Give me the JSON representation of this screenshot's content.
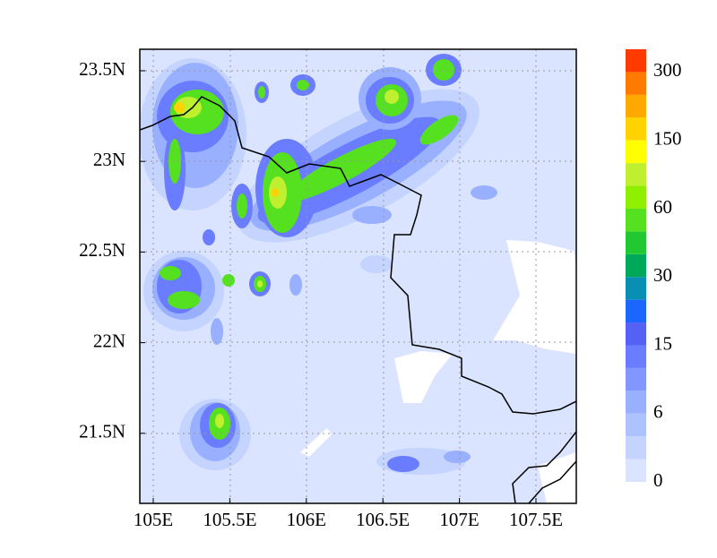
{
  "map": {
    "x_ticks": [
      "105E",
      "105.5E",
      "106E",
      "106.5E",
      "107E",
      "107.5E"
    ],
    "y_ticks": [
      "23.5N",
      "23N",
      "22.5N",
      "22N",
      "21.5N"
    ],
    "colorbar": {
      "labels": [
        0,
        6,
        15,
        30,
        60,
        150,
        300
      ],
      "colors": [
        "#dbe4ff",
        "#c4d4ff",
        "#aec2ff",
        "#98b0ff",
        "#8296ff",
        "#6a7cff",
        "#5560f5",
        "#1a66ff",
        "#0a8fb4",
        "#00a85a",
        "#22c832",
        "#55e020",
        "#8ef000",
        "#bef030",
        "#ffff00",
        "#ffd200",
        "#ffa800",
        "#ff7a00",
        "#ff3a00"
      ]
    }
  }
}
